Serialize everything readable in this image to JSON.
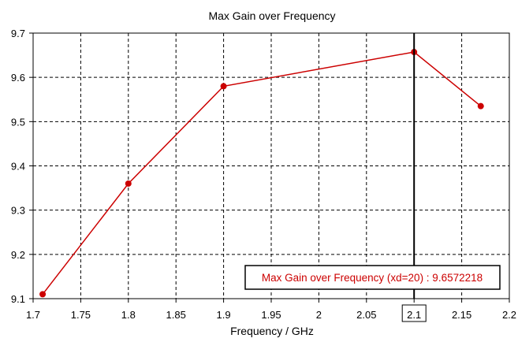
{
  "chart_data": {
    "type": "line",
    "title": "Max Gain over Frequency",
    "xlabel": "Frequency / GHz",
    "ylabel": "",
    "xlim": [
      1.7,
      2.2
    ],
    "ylim": [
      9.1,
      9.7
    ],
    "x_ticks": [
      "1.7",
      "1.75",
      "1.8",
      "1.85",
      "1.9",
      "1.95",
      "2",
      "2.05",
      "2.1",
      "2.15",
      "2.2"
    ],
    "y_ticks": [
      "9.1",
      "9.2",
      "9.3",
      "9.4",
      "9.5",
      "9.6",
      "9.7"
    ],
    "grid": true,
    "series": [
      {
        "color": "#cc0000",
        "x": [
          1.71,
          1.8,
          1.9,
          2.1,
          2.17
        ],
        "y": [
          9.11,
          9.36,
          9.58,
          9.6572218,
          9.535
        ]
      }
    ],
    "marker": {
      "x": 2.1,
      "x_label": "2.1",
      "label": "Max Gain over Frequency (xd=20) : 9.6572218",
      "label_color": "#cc0000"
    }
  }
}
